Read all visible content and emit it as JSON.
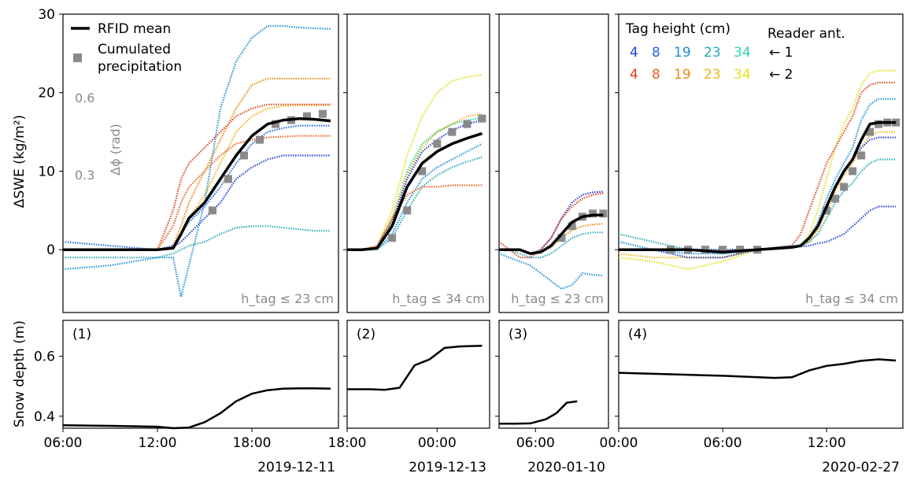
{
  "figure": {
    "ylabel_top": "ΔSWE (kg/m²)",
    "ylabel_bottom": "Snow depth (m)",
    "phase_label": "Δϕ (rad)",
    "phase_ticks": [
      "0.6",
      "0.3"
    ],
    "legend": {
      "mean_label": "RFID mean",
      "precip_label_1": "Cumulated",
      "precip_label_2": "precipitation",
      "tag_height_title": "Tag height (cm)",
      "reader_title": "Reader ant.",
      "reader1": "← 1",
      "reader2": "← 2",
      "tag_heights": [
        "4",
        "8",
        "19",
        "23",
        "34"
      ],
      "row1_colors": [
        "#1f3fd6",
        "#1f6ae0",
        "#1e8fd6",
        "#2aa8b6",
        "#2fd6a6"
      ],
      "row2_colors": [
        "#e0401a",
        "#e8621e",
        "#ea8a10",
        "#edb41c",
        "#e6df1e"
      ]
    },
    "colors": {
      "mean": "#000000",
      "precip": "#8a8a8a",
      "phase_text": "#8a8a8a"
    }
  },
  "chart_data": [
    {
      "type": "line",
      "panel": "(1)",
      "note": "h_tag ≤ 23 cm",
      "xticks": [
        "06:00",
        "12:00",
        "18:00"
      ],
      "date_label": "2019-12-11",
      "ylim": [
        -8,
        30
      ],
      "yticks": [
        "0",
        "10",
        "20",
        "30"
      ],
      "x_hours": [
        0,
        3,
        6,
        7,
        7.5,
        8,
        9,
        10,
        11,
        12,
        13,
        14,
        15,
        16,
        17
      ],
      "rfid_mean": [
        0,
        0,
        0,
        0.2,
        2,
        4,
        6,
        9,
        12,
        14.5,
        16,
        16.5,
        16.7,
        16.6,
        16.4
      ],
      "precip_x": [
        9.5,
        10.5,
        11.5,
        12.5,
        13.5,
        14.5,
        15.5,
        16.5
      ],
      "precip_y": [
        5,
        9,
        12,
        14,
        16,
        16.5,
        17,
        17.3
      ],
      "series": [
        {
          "color": "#1e8fd6",
          "values": [
            -2.5,
            -2,
            -1,
            -1,
            -6,
            -2,
            6,
            18,
            24,
            27,
            28.5,
            28.5,
            28.3,
            28.2,
            28.1
          ]
        },
        {
          "color": "#ea8a10",
          "values": [
            0,
            0,
            0,
            0.5,
            3,
            6,
            10,
            14,
            18,
            21,
            21.8,
            21.8,
            21.8,
            21.8,
            21.8
          ]
        },
        {
          "color": "#edb41c",
          "values": [
            0,
            0,
            0,
            0.3,
            2,
            4,
            7,
            11,
            15,
            17,
            18,
            18.3,
            18.4,
            18.4,
            18.4
          ]
        },
        {
          "color": "#e0401a",
          "values": [
            0,
            0,
            0,
            5,
            9,
            11,
            13,
            15,
            17,
            18,
            18.5,
            18.5,
            18.5,
            18.5,
            18.5
          ]
        },
        {
          "color": "#e8621e",
          "values": [
            0,
            0,
            0,
            3,
            6,
            8,
            10,
            12,
            13.5,
            14,
            14.3,
            14.4,
            14.5,
            14.5,
            14.5
          ]
        },
        {
          "color": "#1f6ae0",
          "values": [
            1,
            0.5,
            0,
            0.5,
            2,
            3.5,
            5.5,
            8,
            11,
            13.5,
            15,
            15.5,
            15.8,
            15.8,
            15.8
          ]
        },
        {
          "color": "#1f3fd6",
          "values": [
            0,
            0,
            0,
            0.3,
            1,
            2,
            4,
            6,
            9,
            10.5,
            11.5,
            12,
            12,
            12,
            12
          ]
        },
        {
          "color": "#2aa8b6",
          "values": [
            -1,
            -1,
            -1,
            -0.5,
            0,
            0.5,
            1,
            2,
            2.8,
            3,
            3,
            2.8,
            2.6,
            2.4,
            2.4
          ]
        }
      ],
      "snow_depth": {
        "ylim": [
          0.36,
          0.72
        ],
        "yticks": [
          "0.4",
          "0.6"
        ],
        "x_hours": [
          0,
          3,
          6,
          7,
          8,
          9,
          10,
          11,
          12,
          13,
          14,
          15,
          16,
          17
        ],
        "values": [
          0.37,
          0.368,
          0.365,
          0.36,
          0.362,
          0.38,
          0.41,
          0.45,
          0.475,
          0.487,
          0.492,
          0.493,
          0.493,
          0.492
        ]
      }
    },
    {
      "type": "line",
      "panel": "(2)",
      "note": "h_tag ≤ 34 cm",
      "xticks": [
        "18:00",
        "00:00"
      ],
      "date_label": "2019-12-13",
      "ylim": [
        -8,
        30
      ],
      "yticks": [],
      "x_hours": [
        0,
        1,
        2,
        3,
        4,
        5,
        6,
        7,
        8,
        9
      ],
      "rfid_mean": [
        0,
        0,
        0.2,
        3,
        8,
        11,
        12.5,
        13.5,
        14.2,
        14.8
      ],
      "precip_x": [
        3,
        4,
        5,
        6,
        7,
        8,
        9
      ],
      "precip_y": [
        1.5,
        5,
        10,
        13.5,
        15,
        16,
        16.7
      ],
      "series": [
        {
          "color": "#e6df1e",
          "values": [
            0,
            0,
            0.5,
            5,
            12,
            17,
            20,
            21.5,
            22,
            22.3
          ]
        },
        {
          "color": "#2fd6a6",
          "values": [
            0,
            0,
            0.3,
            4,
            10,
            13.5,
            15,
            16,
            16.5,
            16.8
          ]
        },
        {
          "color": "#edb41c",
          "values": [
            0,
            0,
            0.3,
            4,
            9.5,
            13,
            15,
            16,
            17,
            17.3
          ]
        },
        {
          "color": "#1f3fd6",
          "values": [
            0,
            0,
            0.3,
            3.5,
            9,
            12.5,
            14,
            15.2,
            16,
            16.5
          ]
        },
        {
          "color": "#1e8fd6",
          "values": [
            0,
            0,
            0,
            2,
            6,
            9,
            10.5,
            11.5,
            12.5,
            13.5
          ]
        },
        {
          "color": "#2aa8b6",
          "values": [
            0,
            0,
            0,
            1.5,
            5,
            8,
            9.5,
            10.5,
            11.2,
            11.8
          ]
        },
        {
          "color": "#e8621e",
          "values": [
            0,
            0,
            0.5,
            4,
            7,
            8,
            8,
            8.2,
            8.2,
            8.2
          ]
        }
      ],
      "snow_depth": {
        "ylim": [
          0.36,
          0.72
        ],
        "yticks": [],
        "x_hours": [
          0,
          1.5,
          2.5,
          3.5,
          4.5,
          5.5,
          6.5,
          7.5,
          9
        ],
        "values": [
          0.49,
          0.49,
          0.488,
          0.495,
          0.57,
          0.59,
          0.628,
          0.633,
          0.635
        ]
      }
    },
    {
      "type": "line",
      "panel": "(3)",
      "note": "h_tag ≤ 23 cm",
      "xticks": [
        "06:00"
      ],
      "date_label": "2020-01-10",
      "ylim": [
        -8,
        30
      ],
      "yticks": [],
      "x_hours": [
        0,
        1,
        2,
        3,
        4,
        5,
        6,
        7,
        8,
        9,
        10
      ],
      "rfid_mean": [
        0,
        0,
        0,
        -0.5,
        -0.3,
        0.5,
        2,
        3.5,
        4.2,
        4.4,
        4.4
      ],
      "precip_x": [
        6,
        7,
        8,
        9,
        10
      ],
      "precip_y": [
        1.5,
        3,
        4.2,
        4.6,
        4.6
      ],
      "series": [
        {
          "color": "#1f3fd6",
          "values": [
            0,
            0,
            0,
            -0.5,
            0,
            1.5,
            4,
            6,
            7,
            7.3,
            7.4
          ]
        },
        {
          "color": "#e0401a",
          "values": [
            1,
            0,
            -1,
            -1,
            0,
            1.5,
            4,
            5.5,
            6.5,
            7,
            7.2
          ]
        },
        {
          "color": "#ea8a10",
          "values": [
            0,
            0,
            0,
            -0.5,
            -0.2,
            0.3,
            1.5,
            2.5,
            3,
            3.2,
            3.3
          ]
        },
        {
          "color": "#1e8fd6",
          "values": [
            -0.5,
            -1,
            -1.5,
            -2,
            -3,
            -4,
            -5,
            -4.5,
            -3,
            -3.2,
            -3.3
          ]
        },
        {
          "color": "#2aa8b6",
          "values": [
            0,
            0,
            -0.5,
            -1,
            -1,
            -0.5,
            0.5,
            1.5,
            2,
            2.2,
            2.2
          ]
        }
      ],
      "snow_depth": {
        "ylim": [
          0.36,
          0.72
        ],
        "yticks": [],
        "x_hours": [
          0,
          1.5,
          3,
          4.5,
          5.5,
          6.5,
          7.5
        ],
        "values": [
          0.375,
          0.375,
          0.376,
          0.39,
          0.41,
          0.445,
          0.45
        ]
      }
    },
    {
      "type": "line",
      "panel": "(4)",
      "note": "h_tag ≤ 34 cm",
      "xticks": [
        "00:00",
        "06:00",
        "12:00"
      ],
      "date_label": "2020-02-27",
      "ylim": [
        -8,
        30
      ],
      "yticks": [],
      "x_hours": [
        0,
        2,
        4,
        6,
        8,
        10,
        10.5,
        11,
        11.5,
        12,
        12.5,
        13,
        13.5,
        14,
        14.5,
        15,
        15.5,
        16
      ],
      "rfid_mean": [
        0,
        0,
        0,
        -0.3,
        0,
        0.3,
        0.5,
        1.5,
        3,
        5.5,
        8,
        10,
        11.5,
        14,
        16,
        16.2,
        16.2,
        16.2
      ],
      "precip_x": [
        3,
        4,
        5,
        6,
        7,
        8,
        12,
        12.5,
        13,
        13.5,
        14,
        14.5,
        15,
        15.5,
        16
      ],
      "precip_y": [
        0,
        0,
        0,
        0,
        0,
        0,
        5,
        6.5,
        8,
        10,
        12,
        15,
        16,
        16.2,
        16.2
      ],
      "series": [
        {
          "color": "#e6df1e",
          "values": [
            -1,
            -1.5,
            -2.5,
            -1.5,
            0,
            0.3,
            0.5,
            2,
            5,
            9,
            13,
            16,
            18,
            21,
            22.5,
            22.8,
            22.8,
            22.8
          ]
        },
        {
          "color": "#e0401a",
          "values": [
            0,
            0,
            0,
            0,
            0,
            0.5,
            2,
            5,
            8,
            11,
            13,
            15,
            17,
            20,
            21,
            21.3,
            21.3,
            21.3
          ]
        },
        {
          "color": "#1e8fd6",
          "values": [
            1,
            0,
            -0.5,
            -0.5,
            0,
            0.5,
            0.5,
            1.5,
            3.5,
            6.5,
            9,
            11,
            13,
            16.5,
            18.5,
            19.2,
            19.2,
            19.2
          ]
        },
        {
          "color": "#edb41c",
          "values": [
            -0.5,
            -1,
            -1,
            -1,
            0,
            0.3,
            0.5,
            1,
            2.5,
            5,
            7.5,
            9.5,
            11,
            13,
            14.5,
            15,
            15,
            15
          ]
        },
        {
          "color": "#1f3fd6",
          "values": [
            0,
            0,
            0,
            0,
            0,
            0.3,
            0.5,
            1.5,
            3,
            5.5,
            8,
            10,
            11.5,
            13,
            14,
            14.3,
            14.3,
            14.3
          ]
        },
        {
          "color": "#2aa8b6",
          "values": [
            2,
            1,
            0,
            -0.5,
            0,
            0.3,
            0.5,
            1,
            2,
            4,
            6,
            7.5,
            8.5,
            10,
            11,
            11.5,
            11.5,
            11.5
          ]
        },
        {
          "color": "#1f3fd6",
          "values": [
            0,
            0,
            -1,
            -1,
            0,
            0.3,
            0.4,
            0.5,
            0.8,
            1,
            1.5,
            2,
            3,
            4,
            5,
            5.5,
            5.5,
            5.5
          ]
        }
      ],
      "snow_depth": {
        "ylim": [
          0.36,
          0.72
        ],
        "yticks": [],
        "x_hours": [
          0,
          3,
          6,
          9,
          10,
          11,
          12,
          13,
          14,
          15,
          16
        ],
        "values": [
          0.545,
          0.54,
          0.535,
          0.528,
          0.53,
          0.553,
          0.568,
          0.575,
          0.585,
          0.59,
          0.586
        ]
      }
    }
  ]
}
